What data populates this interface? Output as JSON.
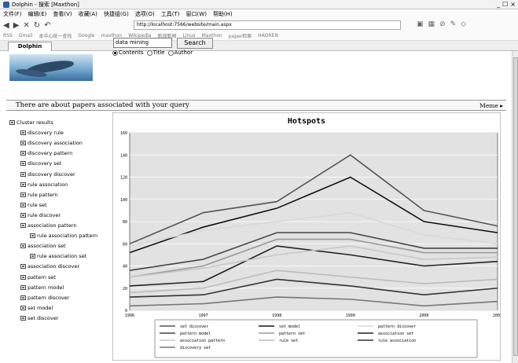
{
  "window": {
    "title": "Dolphin - 搜索 [Maxthon]",
    "controls": [
      "_",
      "☐",
      "×"
    ]
  },
  "menubar": [
    "文件(F)",
    "编辑(E)",
    "查看(V)",
    "收藏(A)",
    "快捷组(G)",
    "选项(O)",
    "工具(T)",
    "窗口(W)",
    "帮助(H)"
  ],
  "toolbar": {
    "address": "http://localhost:7566/website/main.aspx"
  },
  "linksbar": [
    "RSS",
    "Gmail",
    "本中心统一查找",
    "Google",
    "maxthon",
    "Wikipedia",
    "新浪新闻",
    "Linux",
    "Maxthon",
    "paper检索",
    "HAOREN"
  ],
  "tab": {
    "label": "Dolphin"
  },
  "search": {
    "query": "data mining",
    "button": "Search",
    "options": [
      {
        "label": "Contents",
        "selected": true
      },
      {
        "label": "Title",
        "selected": false
      },
      {
        "label": "Author",
        "selected": false
      }
    ]
  },
  "infobar": {
    "message": "There are about papers associated with your query",
    "more": "Meme ▸"
  },
  "tree": {
    "root": "Cluster results",
    "items": [
      {
        "label": "discovery rule",
        "level": 1
      },
      {
        "label": "discovery association",
        "level": 1
      },
      {
        "label": "discovery pattern",
        "level": 1
      },
      {
        "label": "discovery set",
        "level": 1
      },
      {
        "label": "discovery discover",
        "level": 1
      },
      {
        "label": "rule association",
        "level": 1
      },
      {
        "label": "rule pattern",
        "level": 1
      },
      {
        "label": "rule set",
        "level": 1
      },
      {
        "label": "rule discover",
        "level": 1
      },
      {
        "label": "association pattern",
        "level": 1
      },
      {
        "label": "rule association pattern",
        "level": 2
      },
      {
        "label": "association set",
        "level": 1
      },
      {
        "label": "rule association set",
        "level": 2
      },
      {
        "label": "association discover",
        "level": 1
      },
      {
        "label": "pattern set",
        "level": 1
      },
      {
        "label": "pattern model",
        "level": 1
      },
      {
        "label": "pattern discover",
        "level": 1
      },
      {
        "label": "set model",
        "level": 1
      },
      {
        "label": "set discover",
        "level": 1
      }
    ]
  },
  "chart_data": {
    "type": "line",
    "title": "Hotspots",
    "x": [
      1996,
      1997,
      1998,
      1999,
      2000,
      2001
    ],
    "xlim": [
      1996,
      2001
    ],
    "ylim": [
      0,
      160
    ],
    "yticks": [
      0,
      20,
      40,
      60,
      80,
      100,
      120,
      140,
      160
    ],
    "grid": true,
    "legend_position": "bottom",
    "series": [
      {
        "name": "set discover",
        "color": "#555555",
        "values": [
          60,
          88,
          98,
          140,
          90,
          76
        ]
      },
      {
        "name": "set model",
        "color": "#111111",
        "values": [
          52,
          75,
          92,
          120,
          80,
          70
        ]
      },
      {
        "name": "pattern discover",
        "color": "#d8d8d8",
        "values": [
          58,
          72,
          80,
          88,
          68,
          60
        ]
      },
      {
        "name": "pattern model",
        "color": "#444444",
        "values": [
          36,
          46,
          70,
          70,
          56,
          56
        ]
      },
      {
        "name": "pattern set",
        "color": "#999999",
        "values": [
          30,
          40,
          64,
          64,
          52,
          52
        ]
      },
      {
        "name": "association set",
        "color": "#222222",
        "values": [
          22,
          26,
          58,
          50,
          40,
          44
        ]
      },
      {
        "name": "association pattern",
        "color": "#c8c8c8",
        "values": [
          30,
          38,
          50,
          58,
          46,
          48
        ]
      },
      {
        "name": "rule set",
        "color": "#bbbbbb",
        "values": [
          16,
          20,
          36,
          30,
          24,
          28
        ]
      },
      {
        "name": "rule association",
        "color": "#333333",
        "values": [
          12,
          14,
          28,
          22,
          14,
          20
        ]
      },
      {
        "name": "discovery set",
        "color": "#777777",
        "values": [
          4,
          6,
          12,
          10,
          4,
          8
        ]
      }
    ]
  }
}
